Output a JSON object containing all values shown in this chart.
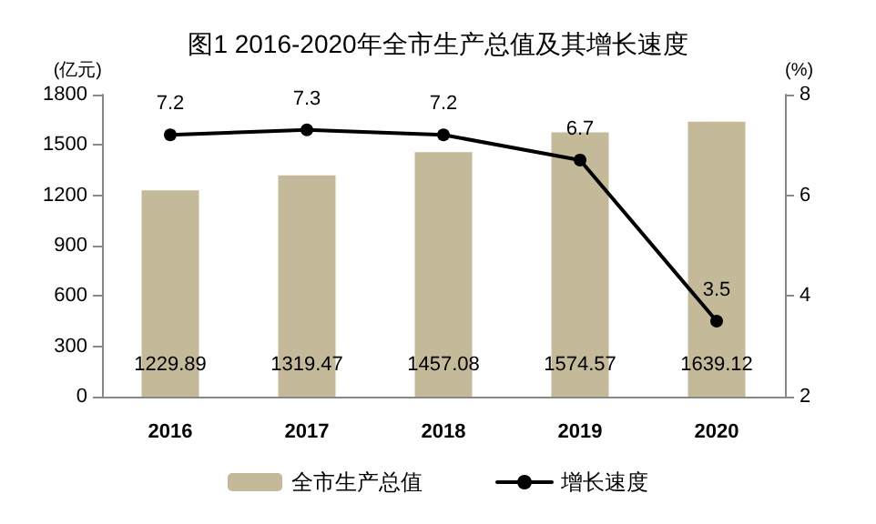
{
  "chart_data": {
    "type": "bar",
    "title": "图1 2016-2020年全市生产总值及其增长速度",
    "ylabel": "(亿元)",
    "y2label": "(%)",
    "categories": [
      "2016",
      "2017",
      "2018",
      "2019",
      "2020"
    ],
    "series": [
      {
        "name": "全市生产总值",
        "color": "#c4b998",
        "values": [
          1229.89,
          1319.47,
          1457.08,
          1574.57,
          1639.12
        ]
      },
      {
        "name": "增长速度",
        "type": "line",
        "axis": "y2",
        "color": "#000000",
        "values": [
          7.2,
          7.3,
          7.2,
          6.7,
          3.5
        ]
      }
    ],
    "ylim": [
      0,
      1800
    ],
    "yticks": [
      0,
      300,
      600,
      900,
      1200,
      1500,
      1800
    ],
    "y2lim": [
      2,
      8
    ],
    "y2ticks": [
      2,
      4,
      6,
      8
    ],
    "data_labels": true,
    "grid": false,
    "legend": "bottom",
    "marker": "circle",
    "line_style": "solid"
  }
}
